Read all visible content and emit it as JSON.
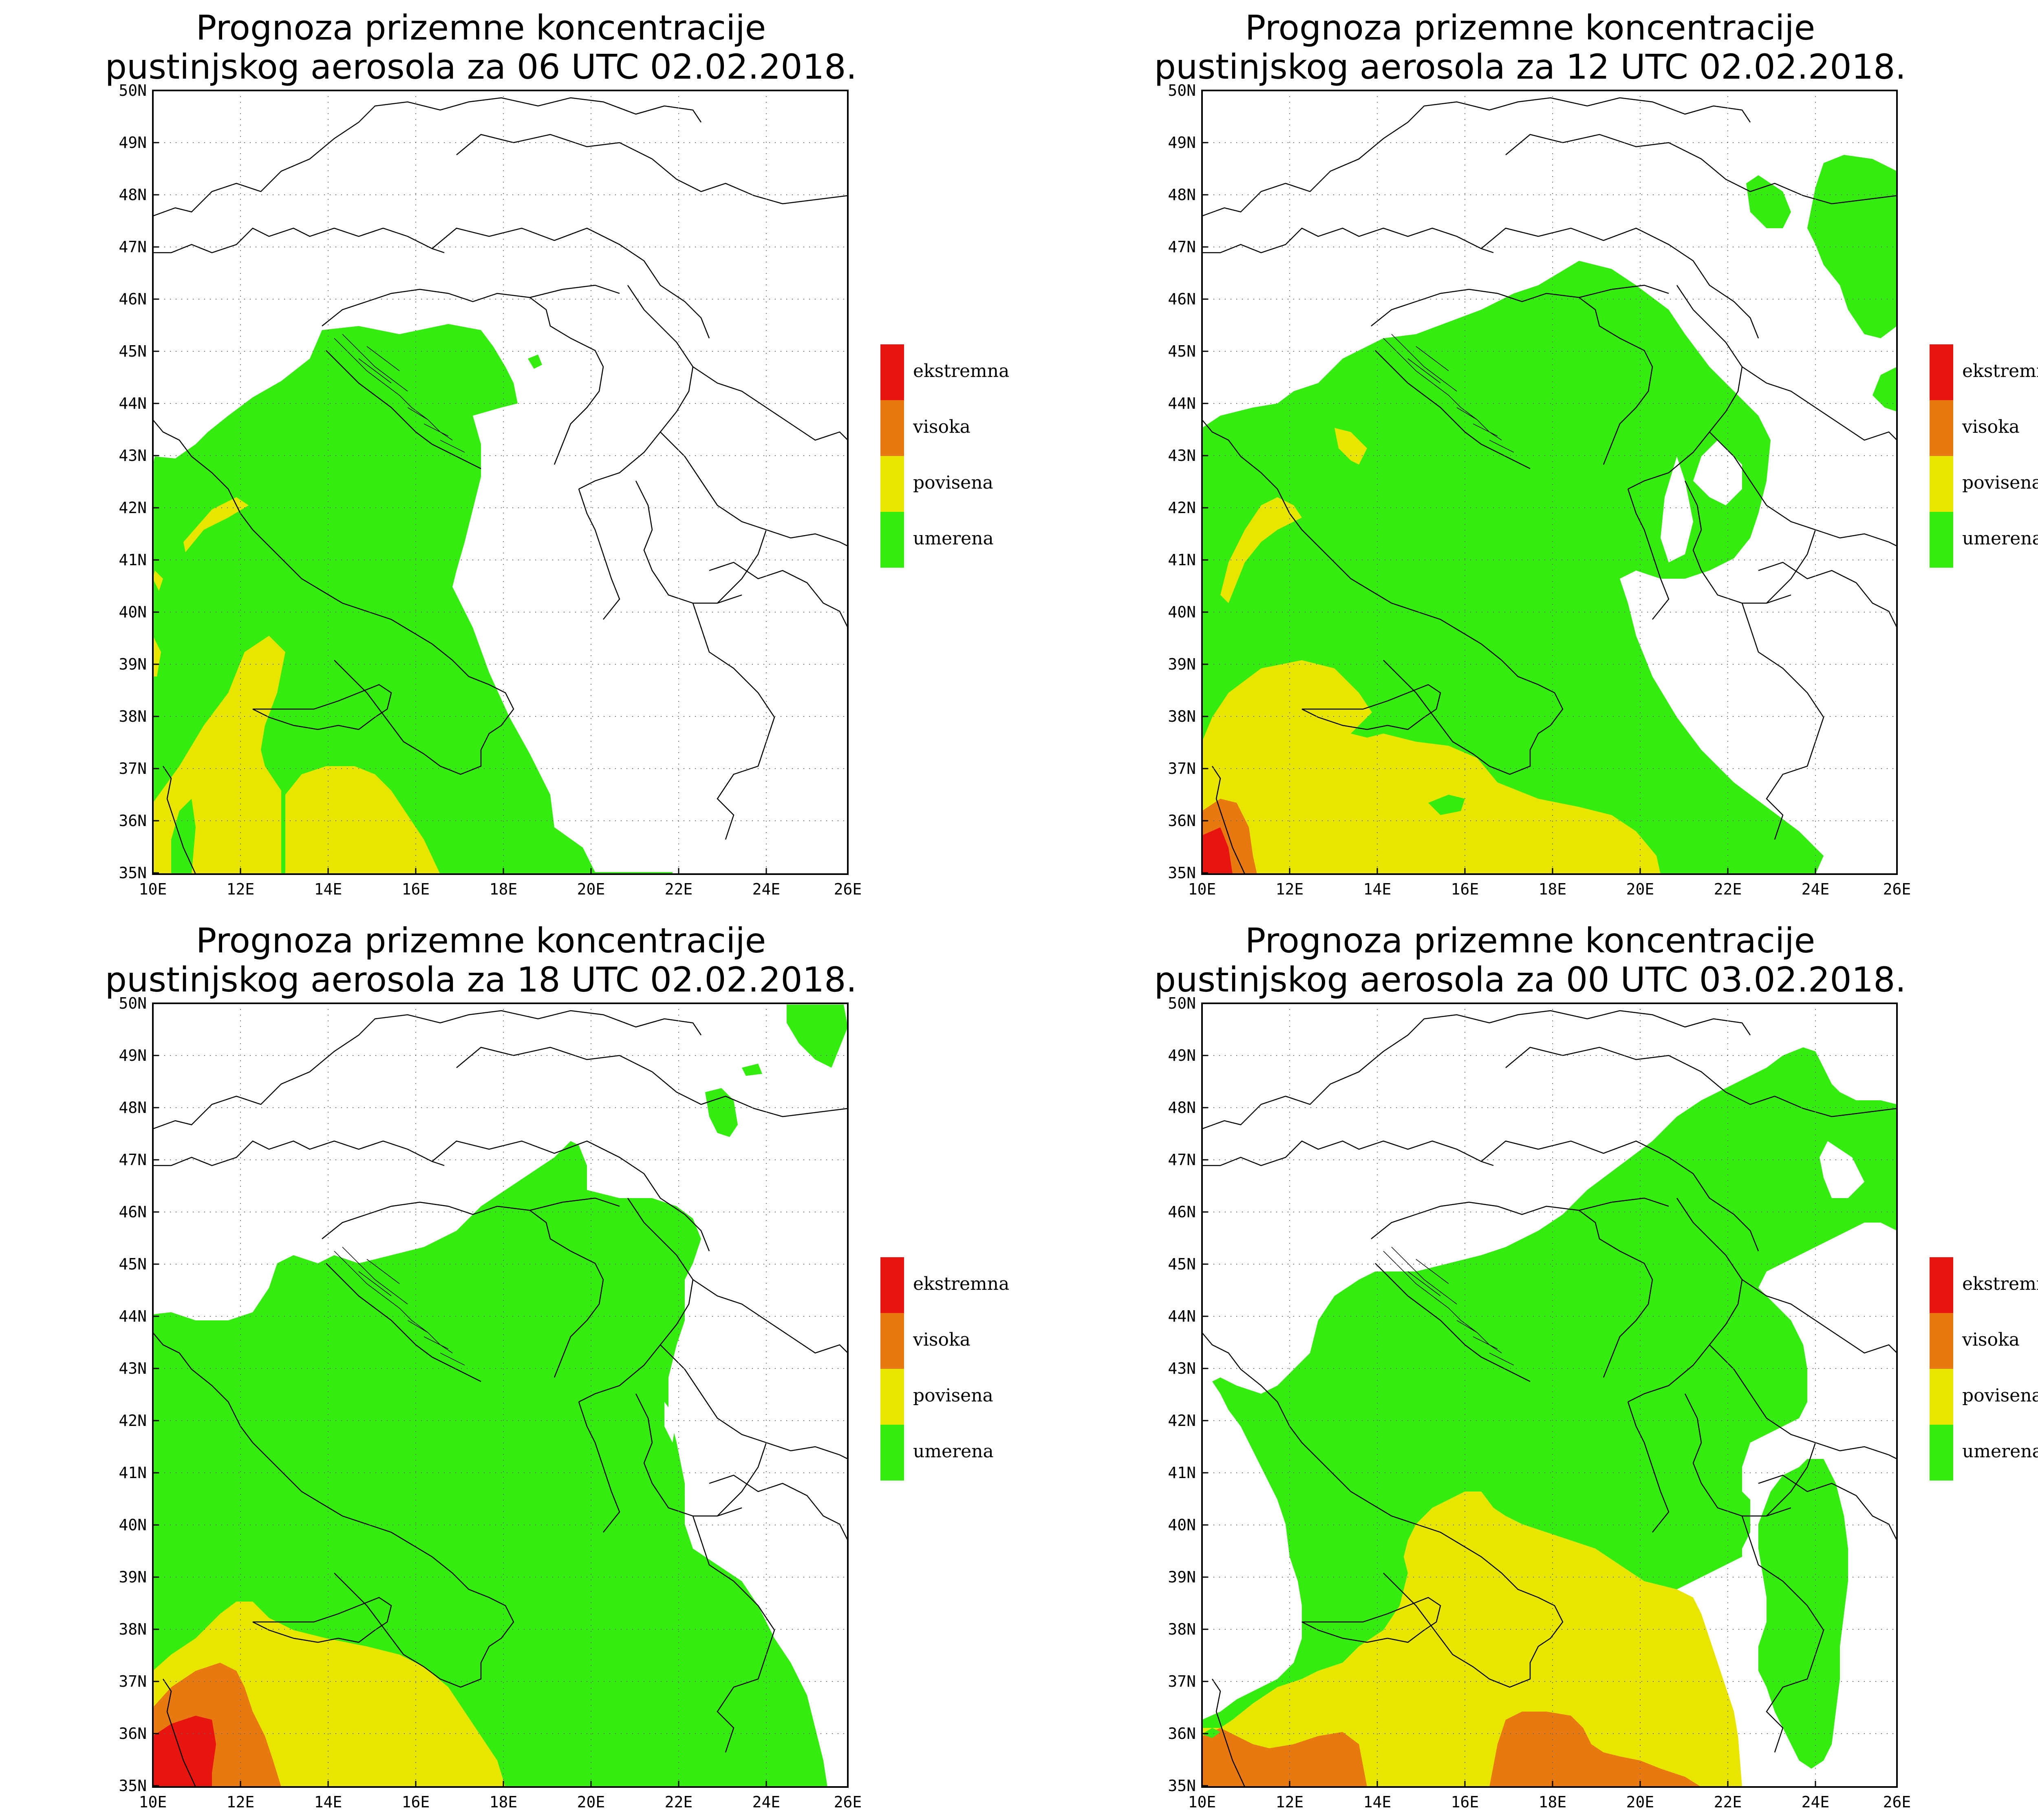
{
  "maps": [
    {
      "title_line1": "Prognoza prizemne koncentracije",
      "title_line2": "pustinjskog aerosola za 06 UTC 02.02.2018."
    },
    {
      "title_line1": "Prognoza prizemne koncentracije",
      "title_line2": "pustinjskog aerosola za 12 UTC 02.02.2018."
    },
    {
      "title_line1": "Prognoza prizemne koncentracije",
      "title_line2": "pustinjskog aerosola za 18 UTC 02.02.2018."
    },
    {
      "title_line1": "Prognoza prizemne koncentracije",
      "title_line2": "pustinjskog aerosola za 00 UTC 03.02.2018."
    }
  ],
  "lat_labels": [
    "50N",
    "49N",
    "48N",
    "47N",
    "46N",
    "45N",
    "44N",
    "43N",
    "42N",
    "41N",
    "40N",
    "39N",
    "38N",
    "37N",
    "36N",
    "35N"
  ],
  "lon_labels": [
    "10E",
    "12E",
    "14E",
    "16E",
    "18E",
    "20E",
    "22E",
    "24E",
    "26E"
  ],
  "legend": [
    {
      "label": "ekstremna",
      "color": "#e81410"
    },
    {
      "label": "visoka",
      "color": "#e87810"
    },
    {
      "label": "povisena",
      "color": "#e8e600"
    },
    {
      "label": "umerena",
      "color": "#34ec10"
    }
  ],
  "colors": {
    "umerena": "#34ec10",
    "povisena": "#e8e600",
    "visoka": "#e87810",
    "ekstremna": "#e81410"
  }
}
